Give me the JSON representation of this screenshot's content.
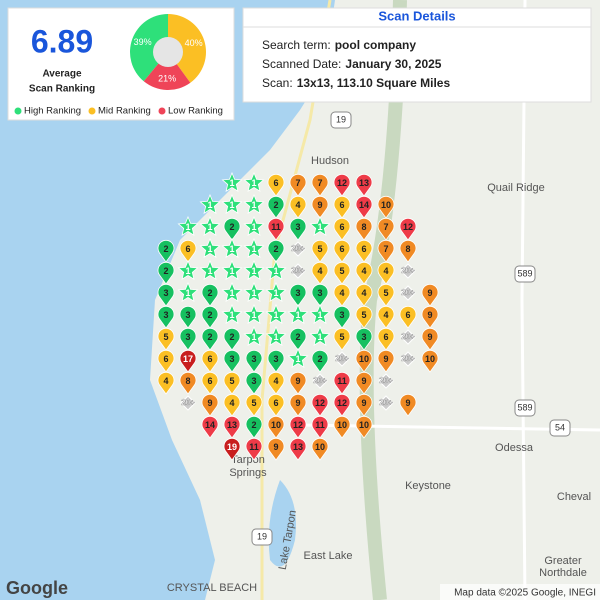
{
  "summary": {
    "average": 6.89,
    "average_label": [
      "Average",
      "Scan Ranking"
    ],
    "breakdown": {
      "names": [
        "High Ranking",
        "Mid Ranking",
        "Low Ranking"
      ],
      "values": [
        39,
        40,
        21
      ],
      "value_labels": [
        "39%",
        "40%",
        "21%"
      ],
      "colors": [
        "#2ee07a",
        "#fbbf24",
        "#ef4458"
      ]
    }
  },
  "details": {
    "title": "Scan Details",
    "rows": [
      {
        "label": "Search term:",
        "value": "pool company"
      },
      {
        "label": "Scanned Date:",
        "value": "January 30, 2025"
      },
      {
        "label": "Scan:",
        "value": "13x13, 113.10 Square Miles"
      }
    ]
  },
  "grid": [
    [
      null,
      null,
      null,
      1,
      1,
      6,
      7,
      7,
      12,
      13,
      null,
      null,
      null
    ],
    [
      null,
      null,
      1,
      1,
      1,
      2,
      4,
      9,
      6,
      14,
      10,
      null,
      null
    ],
    [
      null,
      1,
      1,
      2,
      1,
      11,
      3,
      1,
      6,
      8,
      7,
      12,
      null
    ],
    [
      2,
      6,
      1,
      1,
      1,
      2,
      "20+",
      5,
      6,
      6,
      7,
      8,
      null
    ],
    [
      2,
      1,
      1,
      1,
      1,
      1,
      "20+",
      4,
      5,
      4,
      4,
      "20+",
      null
    ],
    [
      3,
      1,
      2,
      1,
      1,
      1,
      3,
      3,
      4,
      4,
      5,
      "20+",
      9
    ],
    [
      3,
      3,
      2,
      1,
      1,
      1,
      1,
      1,
      3,
      5,
      4,
      6,
      9
    ],
    [
      5,
      3,
      2,
      2,
      1,
      1,
      2,
      1,
      5,
      3,
      6,
      "20+",
      9
    ],
    [
      6,
      17,
      6,
      3,
      3,
      3,
      1,
      2,
      "20+",
      10,
      9,
      "20+",
      10
    ],
    [
      4,
      8,
      6,
      5,
      3,
      4,
      9,
      "20+",
      11,
      9,
      "20+",
      null,
      null
    ],
    [
      null,
      "20+",
      9,
      4,
      5,
      6,
      9,
      12,
      12,
      9,
      "20+",
      9,
      null
    ],
    [
      null,
      null,
      14,
      13,
      2,
      10,
      12,
      11,
      10,
      10,
      null,
      null,
      null
    ],
    [
      null,
      null,
      null,
      19,
      11,
      9,
      13,
      10,
      null,
      null,
      null,
      null,
      null
    ]
  ],
  "map": {
    "places": [
      "Hudson",
      "Quail Ridge",
      "Odessa",
      "Keystone",
      "Cheval",
      "Tarpon",
      "Springs",
      "Lake Tarpon",
      "East Lake",
      "Greater",
      "Northdale",
      "CRYSTAL BEACH"
    ],
    "shields": [
      "19",
      "589",
      "589",
      "54",
      "19"
    ],
    "attribution": "Map data ©2025 Google, INEGI",
    "logo": "Google"
  }
}
